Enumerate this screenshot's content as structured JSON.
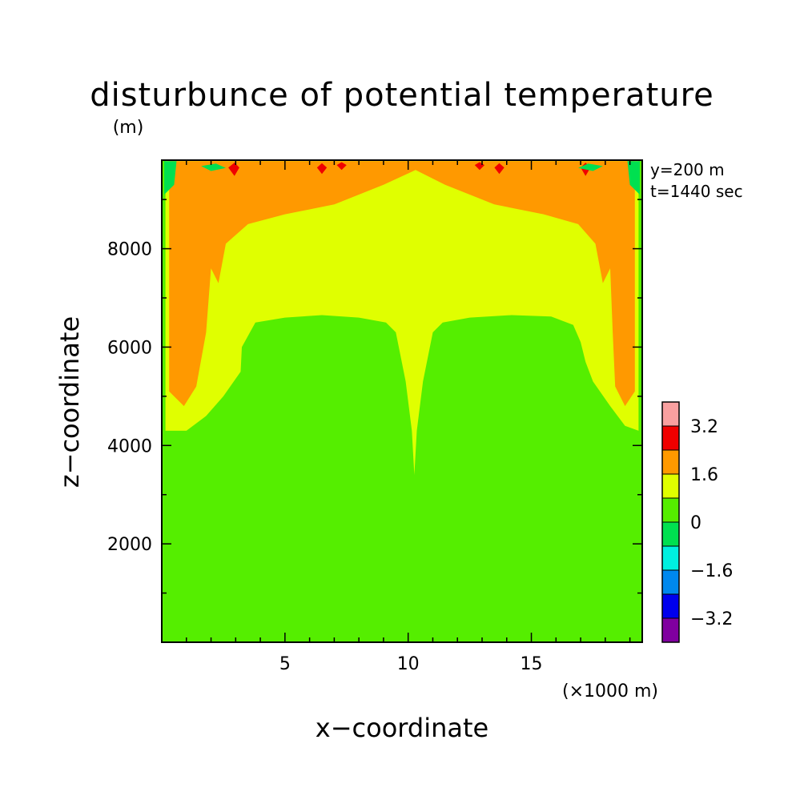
{
  "chart_data": {
    "type": "heatmap",
    "title": "disturbunce of potential temperature",
    "z_unit_label": "(m)",
    "xlabel": "x−coordinate",
    "ylabel": "z−coordinate",
    "x_unit_label": "(×1000 m)",
    "xlim": [
      0,
      19.5
    ],
    "ylim": [
      0,
      9800
    ],
    "x_ticks": [
      {
        "value": 5,
        "label": "5"
      },
      {
        "value": 10,
        "label": "10"
      },
      {
        "value": 15,
        "label": "15"
      }
    ],
    "y_ticks": [
      {
        "value": 2000,
        "label": "2000"
      },
      {
        "value": 4000,
        "label": "4000"
      },
      {
        "value": 6000,
        "label": "6000"
      },
      {
        "value": 8000,
        "label": "8000"
      }
    ],
    "annotations": [
      "y=200 m",
      "t=1440 sec"
    ],
    "colorbar": {
      "levels": [
        {
          "min": 3.2,
          "color": "#f9a0a0"
        },
        {
          "min": 2.4,
          "max": 3.2,
          "color": "#f00000"
        },
        {
          "min": 1.6,
          "max": 2.4,
          "color": "#ff9900"
        },
        {
          "min": 0.8,
          "max": 1.6,
          "color": "#e0ff00"
        },
        {
          "min": 0.0,
          "max": 0.8,
          "color": "#55ee00"
        },
        {
          "min": -0.8,
          "max": 0.0,
          "color": "#00e050"
        },
        {
          "min": -1.6,
          "max": -0.8,
          "color": "#00f0e0"
        },
        {
          "min": -2.4,
          "max": -1.6,
          "color": "#0088ee"
        },
        {
          "min": -3.2,
          "max": -2.4,
          "color": "#0000ee"
        },
        {
          "max": -3.2,
          "color": "#8000a0"
        }
      ],
      "tick_labels": [
        "3.2",
        "1.6",
        "0",
        "−1.6",
        "−3.2"
      ]
    },
    "regions": [
      {
        "name": "background-0-to-0.8",
        "level_color": "#55ee00",
        "points": [
          [
            0,
            0
          ],
          [
            19.5,
            0
          ],
          [
            19.5,
            9800
          ],
          [
            0,
            9800
          ]
        ]
      },
      {
        "name": "band-0.8-to-1.6",
        "level_color": "#e0ff00",
        "points": [
          [
            0.15,
            9800
          ],
          [
            19.35,
            9800
          ],
          [
            19.35,
            4300
          ],
          [
            18.8,
            4400
          ],
          [
            18.2,
            4800
          ],
          [
            17.5,
            5300
          ],
          [
            17.2,
            5700
          ],
          [
            17,
            6100
          ],
          [
            16.7,
            6450
          ],
          [
            15.8,
            6620
          ],
          [
            14.2,
            6650
          ],
          [
            12.5,
            6600
          ],
          [
            11.4,
            6500
          ],
          [
            11,
            6300
          ],
          [
            10.6,
            5300
          ],
          [
            10.35,
            4300
          ],
          [
            10.25,
            3400
          ],
          [
            10.15,
            4300
          ],
          [
            9.9,
            5300
          ],
          [
            9.5,
            6300
          ],
          [
            9.1,
            6500
          ],
          [
            8,
            6600
          ],
          [
            6.5,
            6650
          ],
          [
            5,
            6600
          ],
          [
            3.8,
            6500
          ],
          [
            3.25,
            6000
          ],
          [
            3.2,
            5500
          ],
          [
            2.5,
            5000
          ],
          [
            1.8,
            4600
          ],
          [
            1,
            4300
          ],
          [
            0.15,
            4300
          ]
        ]
      },
      {
        "name": "band-1.6-to-2.4",
        "level_color": "#ff9900",
        "points": [
          [
            0.3,
            9780
          ],
          [
            19.2,
            9780
          ],
          [
            19.2,
            5100
          ],
          [
            18.8,
            4800
          ],
          [
            18.4,
            5200
          ],
          [
            18.3,
            6300
          ],
          [
            18.2,
            7600
          ],
          [
            17.9,
            7300
          ],
          [
            17.6,
            8100
          ],
          [
            16.9,
            8500
          ],
          [
            15.5,
            8700
          ],
          [
            13.5,
            8900
          ],
          [
            11.5,
            9300
          ],
          [
            10.3,
            9600
          ],
          [
            9,
            9300
          ],
          [
            7,
            8900
          ],
          [
            5,
            8700
          ],
          [
            3.5,
            8500
          ],
          [
            2.6,
            8100
          ],
          [
            2.3,
            7300
          ],
          [
            2,
            7600
          ],
          [
            1.8,
            6300
          ],
          [
            1.4,
            5200
          ],
          [
            0.9,
            4800
          ],
          [
            0.3,
            5100
          ]
        ]
      },
      {
        "name": "band-2.4-to-3.2-a",
        "level_color": "#f00000",
        "points": [
          [
            2.7,
            9650
          ],
          [
            2.95,
            9750
          ],
          [
            3.15,
            9650
          ],
          [
            2.95,
            9480
          ]
        ]
      },
      {
        "name": "band-2.4-to-3.2-b",
        "level_color": "#f00000",
        "points": [
          [
            6.3,
            9650
          ],
          [
            6.5,
            9740
          ],
          [
            6.7,
            9650
          ],
          [
            6.5,
            9520
          ]
        ]
      },
      {
        "name": "band-2.4-to-3.2-c",
        "level_color": "#f00000",
        "points": [
          [
            7.1,
            9700
          ],
          [
            7.3,
            9760
          ],
          [
            7.5,
            9700
          ],
          [
            7.3,
            9600
          ]
        ]
      },
      {
        "name": "band-2.4-to-3.2-d",
        "level_color": "#f00000",
        "points": [
          [
            12.7,
            9700
          ],
          [
            12.9,
            9760
          ],
          [
            13.1,
            9700
          ],
          [
            12.9,
            9600
          ]
        ]
      },
      {
        "name": "band-2.4-to-3.2-e",
        "level_color": "#f00000",
        "points": [
          [
            13.5,
            9650
          ],
          [
            13.7,
            9740
          ],
          [
            13.9,
            9650
          ],
          [
            13.7,
            9520
          ]
        ]
      },
      {
        "name": "band-2.4-to-3.2-f",
        "level_color": "#f00000",
        "points": [
          [
            17,
            9650
          ],
          [
            17.2,
            9750
          ],
          [
            17.4,
            9650
          ],
          [
            17.2,
            9480
          ]
        ]
      },
      {
        "name": "band-neg0.8-to-0-a",
        "level_color": "#00e050",
        "points": [
          [
            0.1,
            9780
          ],
          [
            0.6,
            9780
          ],
          [
            0.5,
            9300
          ],
          [
            0.1,
            9100
          ]
        ]
      },
      {
        "name": "band-neg0.8-to-0-b",
        "level_color": "#00e050",
        "points": [
          [
            18.9,
            9780
          ],
          [
            19.4,
            9780
          ],
          [
            19.4,
            9100
          ],
          [
            19,
            9300
          ]
        ]
      },
      {
        "name": "band-neg0.8-to-0-c",
        "level_color": "#00e050",
        "points": [
          [
            1.6,
            9680
          ],
          [
            2.2,
            9730
          ],
          [
            2.6,
            9640
          ],
          [
            2,
            9580
          ]
        ]
      },
      {
        "name": "band-neg0.8-to-0-d",
        "level_color": "#00e050",
        "points": [
          [
            16.9,
            9640
          ],
          [
            17.3,
            9730
          ],
          [
            17.9,
            9680
          ],
          [
            17.5,
            9580
          ]
        ]
      }
    ]
  }
}
